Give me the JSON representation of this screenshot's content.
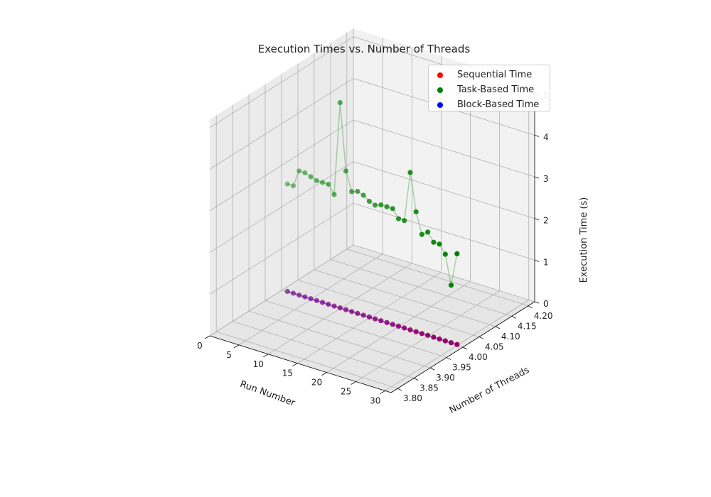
{
  "chart_data": {
    "type": "scatter",
    "title": "Execution Times vs. Number of Threads",
    "xlabel": "Run Number",
    "ylabel": "Number of Threads",
    "zlabel": "Execution Time (s)",
    "xlim": [
      0,
      31
    ],
    "ylim": [
      3.78,
      4.22
    ],
    "zlim": [
      0,
      5.2
    ],
    "x_ticks": [
      "0",
      "5",
      "10",
      "15",
      "20",
      "25",
      "30"
    ],
    "y_ticks": [
      "3.80",
      "3.85",
      "3.90",
      "3.95",
      "4.00",
      "4.05",
      "4.10",
      "4.15",
      "4.20"
    ],
    "z_ticks": [
      "0",
      "1",
      "2",
      "3",
      "4",
      "5"
    ],
    "grid": true,
    "legend_position": "top-right",
    "threads": 4,
    "x": [
      1,
      2,
      3,
      4,
      5,
      6,
      7,
      8,
      9,
      10,
      11,
      12,
      13,
      14,
      15,
      16,
      17,
      18,
      19,
      20,
      21,
      22,
      23,
      24,
      25,
      26,
      27,
      28,
      29,
      30
    ],
    "series": [
      {
        "name": "Sequential Time",
        "color": "#ff0000",
        "values": [
          0.02,
          0.02,
          0.02,
          0.02,
          0.02,
          0.02,
          0.02,
          0.02,
          0.02,
          0.02,
          0.02,
          0.02,
          0.02,
          0.02,
          0.02,
          0.02,
          0.02,
          0.02,
          0.02,
          0.02,
          0.02,
          0.02,
          0.02,
          0.02,
          0.02,
          0.02,
          0.02,
          0.02,
          0.02,
          0.02
        ]
      },
      {
        "name": "Task-Based Time",
        "color": "#008000",
        "values": [
          2.6,
          2.6,
          3.0,
          3.0,
          2.95,
          2.9,
          2.9,
          2.9,
          2.7,
          4.95,
          3.35,
          2.9,
          2.95,
          2.9,
          2.8,
          2.75,
          2.8,
          2.8,
          2.8,
          2.6,
          2.6,
          3.8,
          2.9,
          2.4,
          2.5,
          2.3,
          2.3,
          2.1,
          1.4,
          2.2
        ]
      },
      {
        "name": "Block-Based Time",
        "color": "#0000ff",
        "values": [
          0.02,
          0.02,
          0.02,
          0.02,
          0.02,
          0.02,
          0.02,
          0.02,
          0.02,
          0.02,
          0.02,
          0.02,
          0.02,
          0.02,
          0.02,
          0.02,
          0.02,
          0.02,
          0.02,
          0.02,
          0.02,
          0.02,
          0.02,
          0.02,
          0.02,
          0.02,
          0.02,
          0.02,
          0.02,
          0.02
        ]
      }
    ]
  }
}
